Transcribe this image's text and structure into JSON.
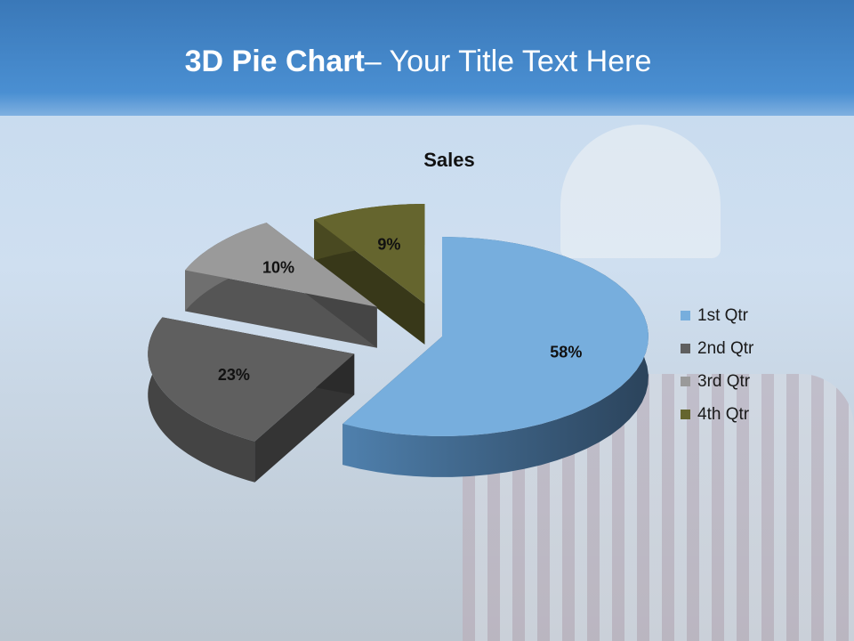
{
  "slide": {
    "title_bold": "3D Pie Chart",
    "title_rest": "– Your Title Text Here"
  },
  "chart_data": {
    "type": "pie",
    "title": "Sales",
    "categories": [
      "1st Qtr",
      "2nd Qtr",
      "3rd Qtr",
      "4th Qtr"
    ],
    "values": [
      58,
      23,
      10,
      9
    ],
    "data_labels": [
      "58%",
      "23%",
      "10%",
      "9%"
    ],
    "colors": [
      "#77aedd",
      "#5f5f5f",
      "#9a9a9a",
      "#65652e"
    ],
    "three_d": true,
    "exploded": true,
    "legend_position": "right"
  }
}
